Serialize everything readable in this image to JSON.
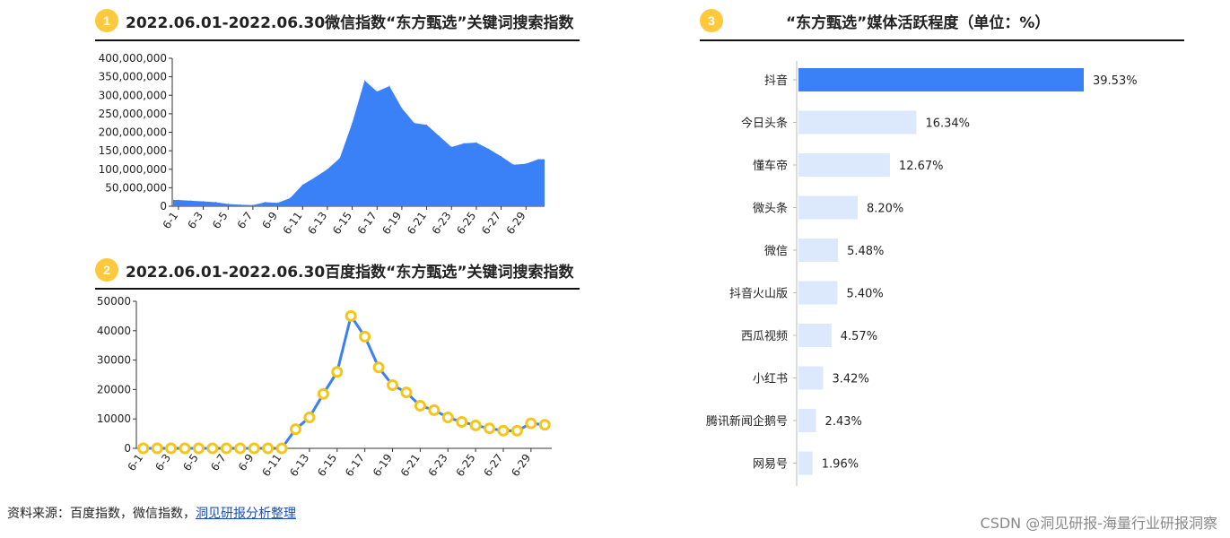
{
  "panel1": {
    "badge": "1",
    "title": "2022.06.01-2022.06.30微信指数“东方甄选”关键词搜索指数"
  },
  "panel2": {
    "badge": "2",
    "title": "2022.06.01-2022.06.30百度指数“东方甄选”关键词搜索指数"
  },
  "panel3": {
    "badge": "3",
    "title": "“东方甄选”媒体活跃程度（单位：%）"
  },
  "source": {
    "prefix": "资料来源：百度指数，微信指数，",
    "link": "洞见研报分析整理"
  },
  "credit": "CSDN @洞见研报-海量行业研报洞察",
  "colors": {
    "accent": "#3A80F6",
    "marker": "#F5C518",
    "light_bar": "#DCE8FC",
    "badge": "#FFC83D"
  },
  "chart_data": [
    {
      "type": "area",
      "x": [
        "6-1",
        "6-2",
        "6-3",
        "6-4",
        "6-5",
        "6-6",
        "6-7",
        "6-8",
        "6-9",
        "6-10",
        "6-11",
        "6-12",
        "6-13",
        "6-14",
        "6-15",
        "6-16",
        "6-17",
        "6-18",
        "6-19",
        "6-20",
        "6-21",
        "6-22",
        "6-23",
        "6-24",
        "6-25",
        "6-26",
        "6-27",
        "6-28",
        "6-29",
        "6-30"
      ],
      "x_tick_labels": [
        "6-1",
        "6-3",
        "6-5",
        "6-7",
        "6-9",
        "6-11",
        "6-13",
        "6-15",
        "6-17",
        "6-19",
        "6-21",
        "6-23",
        "6-25",
        "6-27",
        "6-29"
      ],
      "values": [
        17000000,
        15000000,
        13000000,
        11000000,
        6000000,
        4000000,
        3000000,
        11000000,
        9000000,
        22000000,
        58000000,
        78000000,
        100000000,
        130000000,
        225000000,
        340000000,
        310000000,
        325000000,
        265000000,
        225000000,
        220000000,
        190000000,
        160000000,
        170000000,
        172000000,
        155000000,
        135000000,
        112000000,
        115000000,
        127000000
      ],
      "ylim": [
        0,
        400000000
      ],
      "y_ticks": [
        "0",
        "50,000,000",
        "100,000,000",
        "150,000,000",
        "200,000,000",
        "250,000,000",
        "300,000,000",
        "350,000,000",
        "400,000,000"
      ],
      "grid": false
    },
    {
      "type": "line",
      "x": [
        "6-1",
        "6-2",
        "6-3",
        "6-4",
        "6-5",
        "6-6",
        "6-7",
        "6-8",
        "6-9",
        "6-10",
        "6-11",
        "6-12",
        "6-13",
        "6-14",
        "6-15",
        "6-16",
        "6-17",
        "6-18",
        "6-19",
        "6-20",
        "6-21",
        "6-22",
        "6-23",
        "6-24",
        "6-25",
        "6-26",
        "6-27",
        "6-28",
        "6-29",
        "6-30"
      ],
      "x_tick_labels": [
        "6-1",
        "6-3",
        "6-5",
        "6-7",
        "6-9",
        "6-11",
        "6-13",
        "6-15",
        "6-17",
        "6-19",
        "6-21",
        "6-23",
        "6-25",
        "6-27",
        "6-29"
      ],
      "values": [
        0,
        0,
        0,
        0,
        0,
        0,
        0,
        0,
        0,
        0,
        0,
        6500,
        10500,
        18500,
        26000,
        45000,
        38000,
        27500,
        21500,
        19000,
        14500,
        13000,
        10500,
        9000,
        7800,
        6800,
        6000,
        6000,
        8500,
        8000
      ],
      "ylim": [
        0,
        50000
      ],
      "y_ticks": [
        "0",
        "10000",
        "20000",
        "30000",
        "40000",
        "50000"
      ],
      "grid": false
    },
    {
      "type": "bar",
      "orientation": "horizontal",
      "categories": [
        "抖音",
        "今日头条",
        "懂车帝",
        "微头条",
        "微信",
        "抖音火山版",
        "西瓜视频",
        "小红书",
        "腾讯新闻企鹅号",
        "网易号"
      ],
      "values": [
        39.53,
        16.34,
        12.67,
        8.2,
        5.48,
        5.4,
        4.57,
        3.42,
        2.43,
        1.96
      ],
      "value_labels": [
        "39.53%",
        "16.34%",
        "12.67%",
        "8.20%",
        "5.48%",
        "5.40%",
        "4.57%",
        "3.42%",
        "2.43%",
        "1.96%"
      ],
      "highlight": "抖音"
    }
  ]
}
